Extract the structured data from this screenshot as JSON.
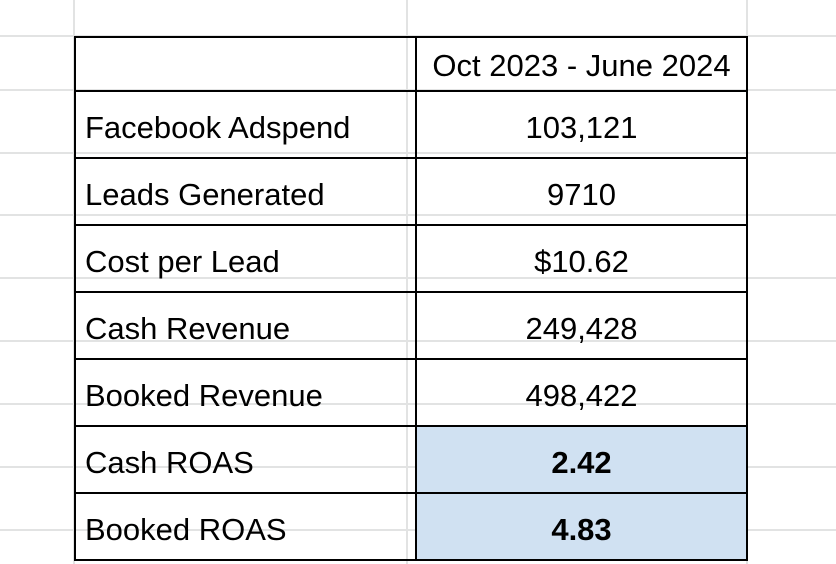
{
  "sheet": {
    "header": {
      "corner": "",
      "period": "Oct 2023 - June 2024"
    },
    "rows": [
      {
        "label": "Facebook Adspend",
        "value": "103,121",
        "highlight": false
      },
      {
        "label": "Leads Generated",
        "value": "9710",
        "highlight": false
      },
      {
        "label": "Cost per Lead",
        "value": "$10.62",
        "highlight": false
      },
      {
        "label": "Cash Revenue",
        "value": "249,428",
        "highlight": false
      },
      {
        "label": "Booked Revenue",
        "value": "498,422",
        "highlight": false
      },
      {
        "label": "Cash ROAS",
        "value": "2.42",
        "highlight": true
      },
      {
        "label": "Booked ROAS",
        "value": "4.83",
        "highlight": true
      }
    ]
  },
  "colors": {
    "highlight_fill": "#d0e1f2",
    "border": "#000000",
    "gridline": "#e2e3e3"
  }
}
